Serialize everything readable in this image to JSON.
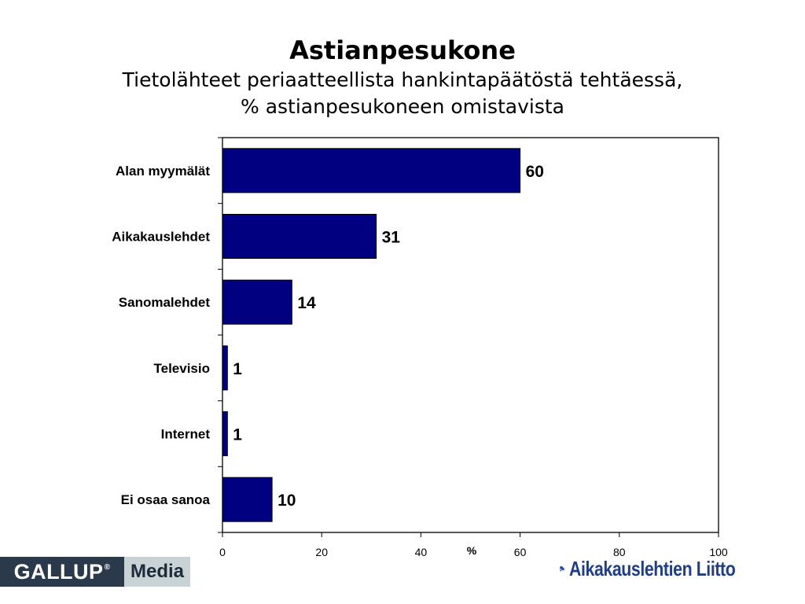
{
  "chart_data": {
    "type": "bar",
    "orientation": "horizontal",
    "title": "Astianpesukone",
    "subtitle": [
      "Tietolähteet periaatteellista hankintapäätöstä tehtäessä,",
      "% astianpesukoneen omistavista"
    ],
    "categories": [
      "Alan myymälät",
      "Aikakauslehdet",
      "Sanomalehdet",
      "Televisio",
      "Internet",
      "Ei osaa sanoa"
    ],
    "values": [
      60,
      31,
      14,
      1,
      1,
      10
    ],
    "xlabel": "%",
    "xlim": [
      0,
      100
    ],
    "xticks": [
      0,
      20,
      40,
      60,
      80,
      100
    ],
    "bar_color": "#000080",
    "grid": false,
    "legend": "none"
  },
  "logos": {
    "gallup_left": "GALLUP",
    "gallup_reg": "®",
    "gallup_right": "Media",
    "al_text": "Aikakauslehtien Liitto",
    "al_color": "#1f3e8a"
  }
}
